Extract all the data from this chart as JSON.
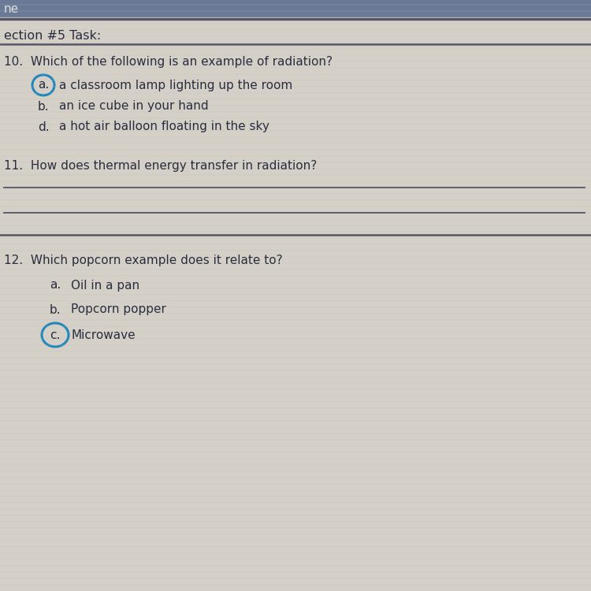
{
  "bg_color": "#d4d0c8",
  "header_bar_color": "#7a8fa8",
  "header_text": "ne",
  "section_text": "ection #5 Task:",
  "q10_text": "10.  Which of the following is an example of radiation?",
  "q10_a_label": "a.",
  "q10_a_text": "a classroom lamp lighting up the room",
  "q10_b_label": "b.",
  "q10_b_text": "an ice cube in your hand",
  "q10_d_label": "d.",
  "q10_d_text": "a hot air balloon floating in the sky",
  "q11_text": "11.  How does thermal energy transfer in radiation?",
  "q12_text": "12.  Which popcorn example does it relate to?",
  "q12_a_label": "a.",
  "q12_a_text": "Oil in a pan",
  "q12_b_label": "b.",
  "q12_b_text": "Popcorn popper",
  "q12_c_label": "c.",
  "q12_c_text": "Microwave",
  "text_color": "#2a2d3e",
  "circle_color": "#2288bb",
  "line_color": "#888888",
  "dark_line_color": "#555566",
  "top_bar_color": "#6a7a96",
  "header_text_color": "#dddddd"
}
